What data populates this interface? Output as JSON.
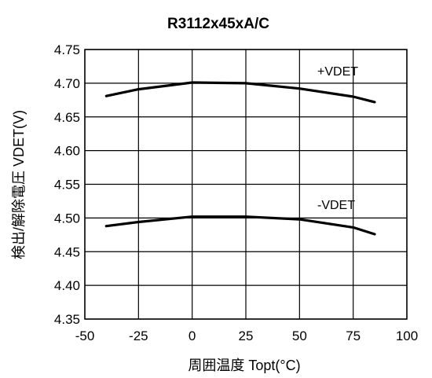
{
  "chart_data": {
    "type": "line",
    "title": "R3112x45xA/C",
    "xlabel": "周囲温度 Topt(°C)",
    "ylabel": "検出/解除電圧 VDET(V)",
    "xlim": [
      -50,
      100
    ],
    "ylim": [
      4.35,
      4.75
    ],
    "xticks": [
      "-50",
      "-25",
      "0",
      "25",
      "50",
      "75",
      "100"
    ],
    "yticks": [
      "4.35",
      "4.40",
      "4.45",
      "4.50",
      "4.55",
      "4.60",
      "4.65",
      "4.70",
      "4.75"
    ],
    "grid": true,
    "series": [
      {
        "name": "+VDET",
        "x": [
          -40,
          -25,
          0,
          25,
          50,
          75,
          85
        ],
        "y": [
          4.681,
          4.691,
          4.701,
          4.7,
          4.692,
          4.68,
          4.672
        ]
      },
      {
        "name": "-VDET",
        "x": [
          -40,
          -25,
          0,
          25,
          50,
          75,
          85
        ],
        "y": [
          4.488,
          4.494,
          4.502,
          4.502,
          4.498,
          4.486,
          4.476
        ]
      }
    ]
  }
}
